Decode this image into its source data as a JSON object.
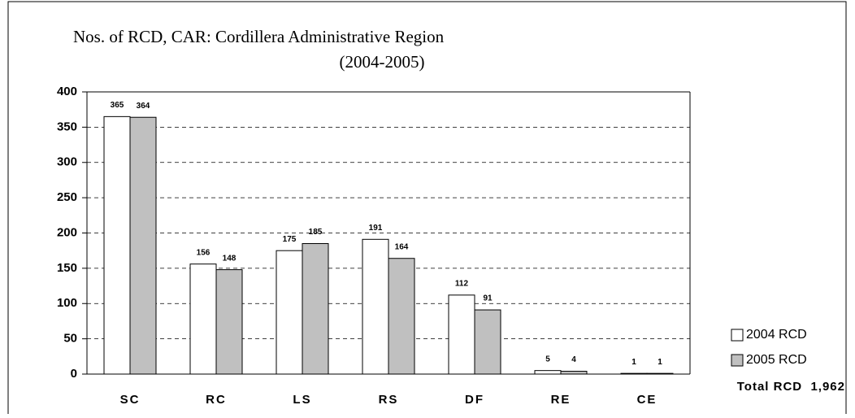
{
  "chart_data": {
    "type": "bar",
    "title": "Nos. of RCD, CAR: Cordillera Administrative Region",
    "subtitle": "(2004-2005)",
    "categories": [
      "SC",
      "RC",
      "LS",
      "RS",
      "DF",
      "RE",
      "CE"
    ],
    "series": [
      {
        "name": "2004 RCD",
        "color": "#ffffff",
        "values": [
          365,
          156,
          175,
          191,
          112,
          5,
          1
        ]
      },
      {
        "name": "2005 RCD",
        "color": "#c0c0c0",
        "values": [
          364,
          148,
          185,
          164,
          91,
          4,
          1
        ]
      }
    ],
    "ylim": [
      0,
      400
    ],
    "yticks": [
      0,
      50,
      100,
      150,
      200,
      250,
      300,
      350,
      400
    ],
    "grid": true,
    "legend": "right",
    "annotation": "Total RCD  1,962"
  }
}
